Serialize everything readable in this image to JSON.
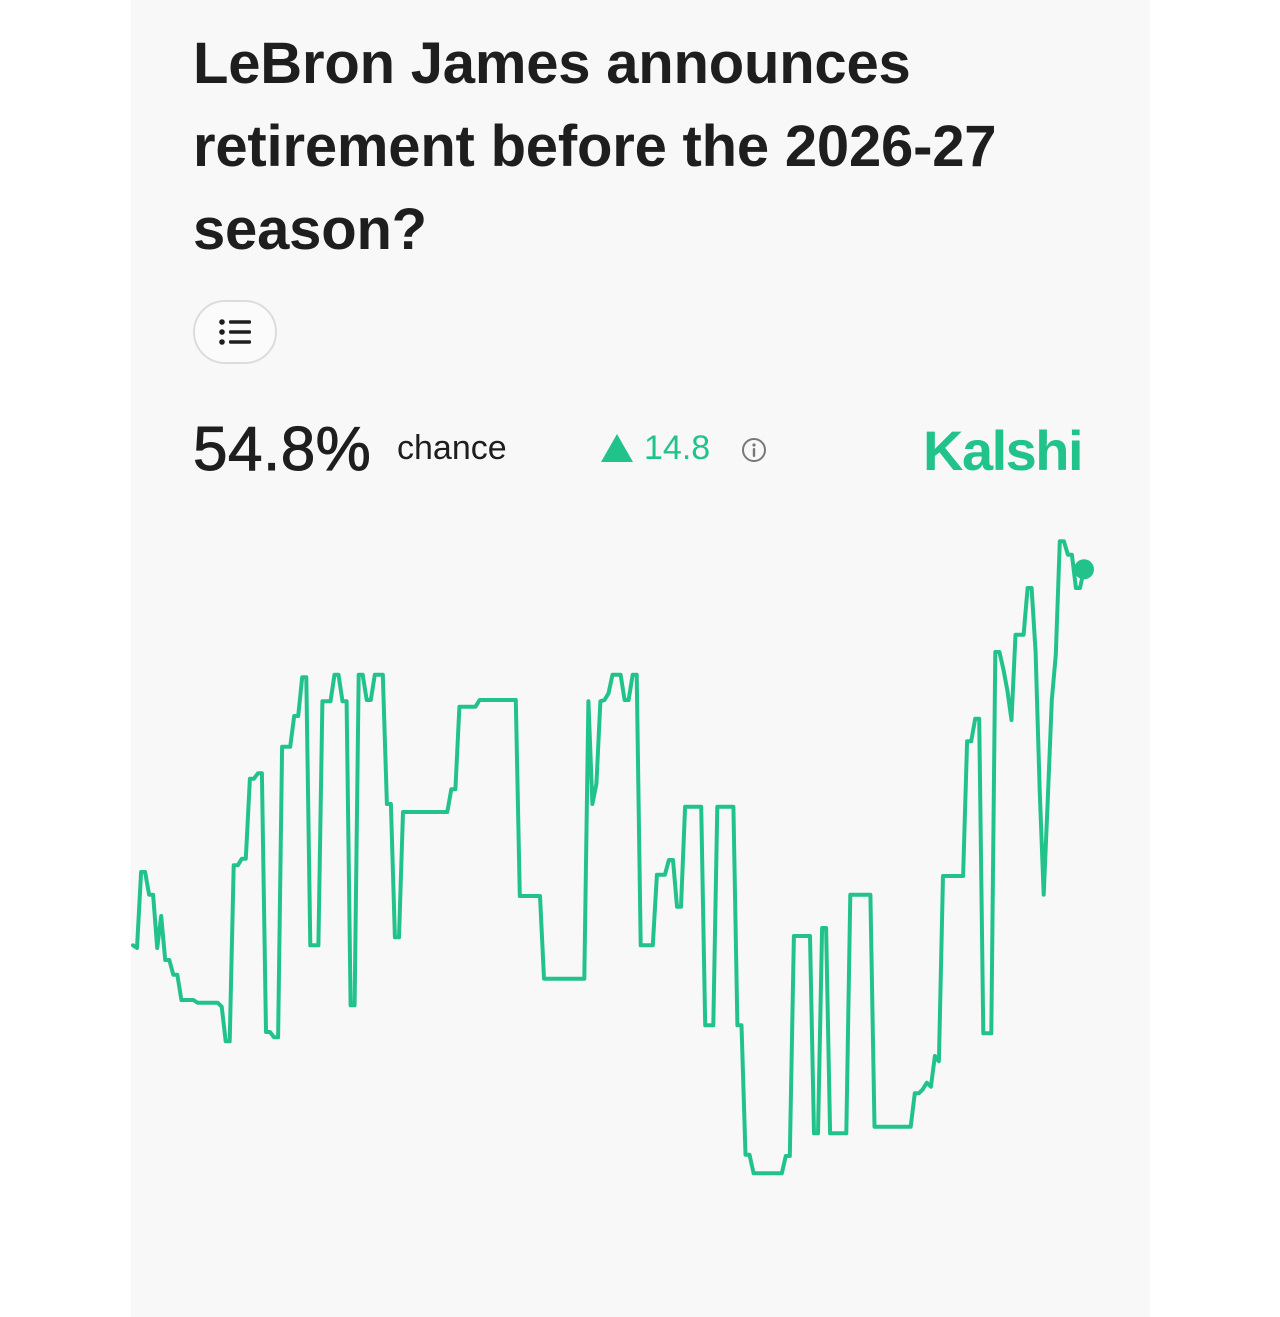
{
  "market": {
    "title": "LeBron James announces retirement before the 2026-27 season?",
    "chance_value": "54.8%",
    "chance_label": "chance",
    "change_value": "14.8",
    "change_direction": "up",
    "brand": "Kalshi"
  },
  "icons": {
    "rules_button_icon": "list-icon",
    "change_icon": "triangle-up-icon",
    "info_icon": "info-icon"
  },
  "colors": {
    "accent": "#22c38b",
    "text": "#1e1e1e",
    "background": "#f8f8f8"
  },
  "chart_data": {
    "type": "line",
    "title": "",
    "xlabel": "",
    "ylabel": "",
    "ylim": [
      0,
      60
    ],
    "grid": false,
    "legend": "none",
    "series": [
      {
        "values": [
          26.6,
          26.4,
          32.1,
          32.1,
          30.4,
          30.4,
          26.4,
          28.8,
          25.5,
          25.5,
          24.4,
          24.4,
          22.5,
          22.5,
          22.5,
          22.5,
          22.3,
          22.3,
          22.3,
          22.3,
          22.3,
          22.3,
          22.0,
          19.4,
          19.4,
          32.6,
          32.6,
          33.1,
          33.1,
          39.1,
          39.1,
          39.5,
          39.5,
          20.1,
          20.1,
          19.7,
          19.7,
          41.5,
          41.5,
          41.5,
          43.8,
          43.8,
          46.7,
          46.7,
          26.6,
          26.6,
          26.6,
          44.9,
          44.9,
          44.9,
          46.9,
          46.9,
          44.9,
          44.9,
          22.1,
          22.1,
          46.9,
          46.9,
          45.0,
          45.0,
          46.9,
          46.9,
          46.9,
          37.2,
          37.2,
          27.2,
          27.2,
          36.6,
          36.6,
          36.6,
          36.6,
          36.6,
          36.6,
          36.6,
          36.6,
          36.6,
          36.6,
          36.6,
          36.6,
          38.3,
          38.3,
          44.5,
          44.5,
          44.5,
          44.5,
          44.5,
          45.0,
          45.0,
          45.0,
          45.0,
          45.0,
          45.0,
          45.0,
          45.0,
          45.0,
          45.0,
          30.3,
          30.3,
          30.3,
          30.3,
          30.3,
          30.3,
          24.1,
          24.1,
          24.1,
          24.1,
          24.1,
          24.1,
          24.1,
          24.1,
          24.1,
          24.1,
          24.1,
          44.9,
          37.2,
          38.7,
          44.9,
          45.0,
          45.5,
          46.9,
          46.9,
          46.9,
          45.0,
          45.0,
          46.9,
          46.9,
          26.6,
          26.6,
          26.6,
          26.6,
          31.9,
          31.9,
          31.9,
          33.0,
          33.0,
          29.5,
          29.5,
          37.0,
          37.0,
          37.0,
          37.0,
          37.0,
          20.6,
          20.6,
          20.6,
          37.0,
          37.0,
          37.0,
          37.0,
          37.0,
          20.6,
          20.6,
          10.9,
          10.9,
          9.5,
          9.5,
          9.5,
          9.5,
          9.5,
          9.5,
          9.5,
          9.5,
          10.8,
          10.8,
          27.3,
          27.3,
          27.3,
          27.3,
          27.3,
          12.5,
          12.5,
          27.9,
          27.9,
          12.5,
          12.5,
          12.5,
          12.5,
          12.5,
          30.4,
          30.4,
          30.4,
          30.4,
          30.4,
          30.4,
          13.0,
          13.0,
          13.0,
          13.0,
          13.0,
          13.0,
          13.0,
          13.0,
          13.0,
          13.0,
          15.5,
          15.5,
          15.8,
          16.3,
          16.0,
          18.3,
          17.9,
          31.8,
          31.8,
          31.8,
          31.8,
          31.8,
          31.8,
          41.9,
          41.9,
          43.6,
          43.6,
          20.0,
          20.0,
          20.0,
          48.6,
          48.6,
          47.3,
          45.7,
          43.5,
          49.9,
          49.9,
          49.9,
          53.4,
          53.4,
          48.6,
          38.2,
          30.4,
          37.4,
          45.0,
          48.4,
          56.9,
          56.9,
          55.9,
          55.9,
          53.4,
          53.4,
          54.8
        ]
      }
    ]
  }
}
